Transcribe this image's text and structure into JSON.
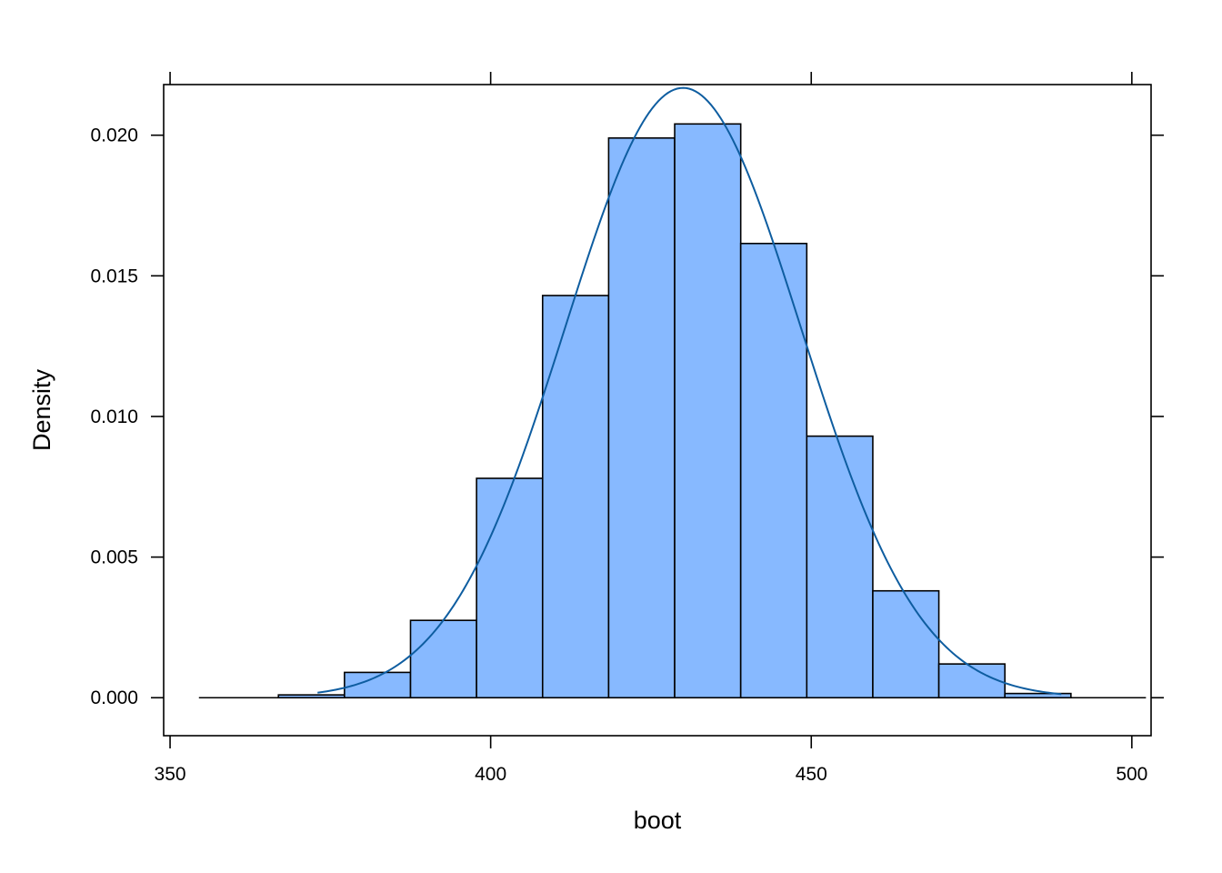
{
  "chart_data": {
    "type": "bar",
    "subtype": "histogram-with-density",
    "title": "",
    "xlabel": "boot",
    "ylabel": "Density",
    "xlim": [
      349,
      503
    ],
    "ylim": [
      -0.00135,
      0.0218
    ],
    "x_ticks": [
      350,
      400,
      450,
      500
    ],
    "x_tick_labels": [
      "350",
      "400",
      "450",
      "500"
    ],
    "y_ticks": [
      0.0,
      0.005,
      0.01,
      0.015,
      0.02
    ],
    "y_tick_labels": [
      "0.000",
      "0.005",
      "0.010",
      "0.015",
      "0.020"
    ],
    "bins": [
      {
        "x0": 356.6,
        "x1": 366.9,
        "density": 0.0
      },
      {
        "x0": 366.9,
        "x1": 377.2,
        "density": 0.0001
      },
      {
        "x0": 377.2,
        "x1": 387.5,
        "density": 0.0009
      },
      {
        "x0": 387.5,
        "x1": 397.8,
        "density": 0.00275
      },
      {
        "x0": 397.8,
        "x1": 408.1,
        "density": 0.0078
      },
      {
        "x0": 408.1,
        "x1": 418.4,
        "density": 0.0143
      },
      {
        "x0": 418.4,
        "x1": 428.7,
        "density": 0.0199
      },
      {
        "x0": 428.7,
        "x1": 439.0,
        "density": 0.0204
      },
      {
        "x0": 439.0,
        "x1": 449.3,
        "density": 0.01615
      },
      {
        "x0": 449.3,
        "x1": 459.6,
        "density": 0.0093
      },
      {
        "x0": 459.6,
        "x1": 469.9,
        "density": 0.0038
      },
      {
        "x0": 469.9,
        "x1": 480.2,
        "density": 0.0012
      },
      {
        "x0": 480.2,
        "x1": 490.5,
        "density": 0.00015
      },
      {
        "x0": 490.5,
        "x1": 500.8,
        "density": 0.0
      }
    ],
    "density_curve": {
      "x_range": [
        373,
        489
      ],
      "mean": 430,
      "sd": 18.4
    },
    "grid": false,
    "legend": "none",
    "colors": {
      "bar_fill": "#87B9FF",
      "bar_stroke": "#000000",
      "curve": "#0E5DA0",
      "axis": "#000000"
    }
  }
}
